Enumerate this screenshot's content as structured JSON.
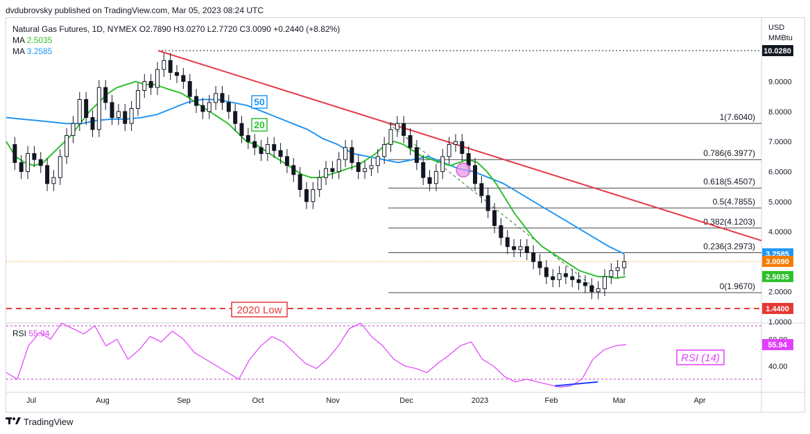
{
  "header": {
    "publish_line": "dvdubrovsky published on TradingView.com, Mar 05, 2023 08:24 UTC"
  },
  "legend": {
    "symbol_line": "Natural Gas Futures, 1D, NYMEX  O2.7890  H3.0270  L2.7720  C3.0090  +0.2440 (+8.82%)",
    "ma1_label": "MA",
    "ma1_value": "2.5035",
    "ma2_label": "MA",
    "ma2_value": "3.2585",
    "rsi_label": "RSI",
    "rsi_value": "55.94"
  },
  "footer": {
    "brand": "TradingView"
  },
  "chart_data": {
    "type": "line",
    "currency_label": "USD",
    "unit_label": "MMBtu",
    "price_ticks": [
      "9.0000",
      "8.0000",
      "7.0000",
      "6.0000",
      "5.0000",
      "4.0000",
      "3.0000",
      "2.0000",
      "1.0000"
    ],
    "time_ticks": [
      "Jul",
      "Aug",
      "Sep",
      "Oct",
      "Nov",
      "Dec",
      "2023",
      "Feb",
      "Mar",
      "Apr"
    ],
    "price_labels": [
      {
        "text": "10.0280",
        "value": 10.028,
        "color": "#131722"
      },
      {
        "text": "3.2585",
        "value": 3.2585,
        "color": "#2196f3"
      },
      {
        "text": "3.0090",
        "value": 3.009,
        "color": "#f57c00"
      },
      {
        "text": "2.5035",
        "value": 2.5035,
        "color": "#2fbf2f"
      },
      {
        "text": "1.4400",
        "value": 1.44,
        "color": "#e53935"
      }
    ],
    "fib_levels": [
      {
        "label": "1(7.6040)",
        "value": 7.604
      },
      {
        "label": "0.786(6.3977)",
        "value": 6.3977
      },
      {
        "label": "0.618(5.4507)",
        "value": 5.4507
      },
      {
        "label": "0.5(4.7855)",
        "value": 4.7855
      },
      {
        "label": "0.382(4.1203)",
        "value": 4.1203
      },
      {
        "label": "0.236(3.2973)",
        "value": 3.2973
      },
      {
        "label": "0(1.9670)",
        "value": 1.967
      }
    ],
    "annotations": {
      "ma50_tag": "50",
      "ma20_tag": "20",
      "low_2020_label": "2020 Low",
      "low_2020_value": 1.44,
      "rsi_tag": "RSI (14)"
    },
    "rsi_ticks": [
      "60.00",
      "40.00"
    ],
    "rsi_current": "55.94",
    "price_path": [
      6.9,
      6.3,
      6.0,
      6.6,
      6.4,
      6.2,
      5.6,
      5.8,
      6.5,
      7.2,
      7.6,
      8.4,
      7.8,
      7.4,
      8.8,
      8.3,
      7.8,
      8.0,
      7.6,
      8.1,
      8.7,
      9.0,
      8.8,
      9.4,
      9.7,
      9.3,
      9.2,
      9.0,
      8.5,
      8.2,
      8.0,
      8.3,
      8.6,
      8.3,
      8.0,
      7.6,
      7.2,
      7.0,
      6.8,
      6.6,
      6.9,
      6.7,
      6.5,
      6.2,
      5.9,
      5.4,
      5.0,
      5.4,
      5.8,
      6.1,
      6.0,
      6.4,
      6.8,
      6.3,
      6.0,
      6.1,
      6.2,
      6.5,
      6.9,
      7.4,
      7.6,
      7.2,
      6.8,
      6.3,
      5.8,
      5.6,
      6.0,
      6.5,
      6.9,
      7.0,
      6.6,
      6.2,
      5.6,
      5.2,
      4.7,
      4.2,
      3.8,
      3.5,
      3.4,
      3.5,
      3.3,
      3.0,
      2.8,
      2.5,
      2.4,
      2.6,
      2.5,
      2.4,
      2.3,
      2.2,
      2.0,
      2.1,
      2.5,
      2.7,
      2.8,
      3.0
    ],
    "ma20_path": [
      7.0,
      6.5,
      6.3,
      6.2,
      6.3,
      6.6,
      6.9,
      7.2,
      7.6,
      8.0,
      8.3,
      8.6,
      8.8,
      8.9,
      9.0,
      8.9,
      8.9,
      8.8,
      8.7,
      8.6,
      8.4,
      8.2,
      8.0,
      7.8,
      7.6,
      7.3,
      7.0,
      6.9,
      6.7,
      6.5,
      6.3,
      6.1,
      5.9,
      5.8,
      5.8,
      5.9,
      6.0,
      6.1,
      6.2,
      6.4,
      6.6,
      6.9,
      7.0,
      6.9,
      6.7,
      6.5,
      6.4,
      6.3,
      6.2,
      6.3,
      6.4,
      6.3,
      6.0,
      5.6,
      5.1,
      4.6,
      4.2,
      3.8,
      3.5,
      3.3,
      3.1,
      2.9,
      2.7,
      2.6,
      2.5,
      2.5,
      2.45,
      2.5
    ],
    "ma50_path": [
      7.8,
      7.75,
      7.7,
      7.65,
      7.6,
      7.6,
      7.7,
      7.75,
      7.75,
      7.8,
      7.9,
      8.1,
      8.3,
      8.4,
      8.4,
      8.3,
      8.2,
      8.0,
      7.8,
      7.6,
      7.4,
      7.1,
      6.9,
      6.6,
      6.5,
      6.4,
      6.3,
      6.4,
      6.5,
      6.3,
      6.1,
      6.0,
      5.8,
      5.6,
      5.3,
      5.0,
      4.7,
      4.4,
      4.1,
      3.8,
      3.5,
      3.26
    ],
    "rsi_path": [
      35,
      30,
      55,
      65,
      60,
      72,
      68,
      64,
      70,
      55,
      60,
      45,
      52,
      62,
      58,
      66,
      60,
      50,
      45,
      40,
      35,
      30,
      45,
      55,
      62,
      58,
      50,
      42,
      38,
      45,
      55,
      68,
      72,
      62,
      55,
      45,
      40,
      38,
      35,
      42,
      48,
      55,
      58,
      45,
      40,
      32,
      28,
      30,
      28,
      26,
      24,
      25,
      30,
      45,
      52,
      55,
      56
    ]
  }
}
